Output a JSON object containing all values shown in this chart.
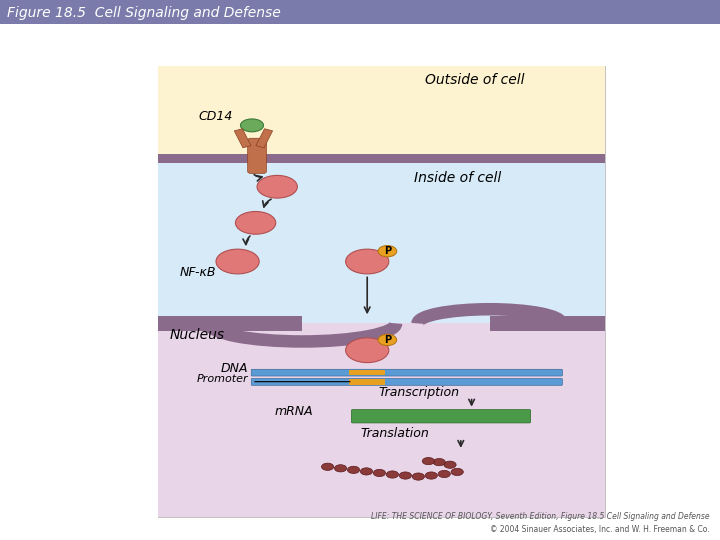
{
  "title": "Figure 18.5  Cell Signaling and Defense",
  "title_bg_color": "#7b7bab",
  "fig_bg_color": "#ffffff",
  "caption_line1": "LIFE: THE SCIENCE OF BIOLOGY, Seventh Edition, Figure 18.5 Cell Signaling and Defense",
  "caption_line2": "© 2004 Sinauer Associates, Inc. and W. H. Freeman & Co.",
  "outside_cell_color": "#fef3d0",
  "inside_cell_color": "#d6eaf8",
  "nucleus_color": "#e8d5e8",
  "membrane_color": "#8b6b8b",
  "cd14_label": "CD14",
  "outside_label": "Outside of cell",
  "inside_label": "Inside of cell",
  "nfkb_label": "NF-κB",
  "nucleus_label": "Nucleus",
  "dna_label": "DNA",
  "promoter_label": "Promoter",
  "transcription_label": "Transcription",
  "mrna_label": "mRNA",
  "translation_label": "Translation",
  "p_label": "P",
  "receptor_color": "#c0704a",
  "receptor_green_color": "#6aaa5a",
  "nfkb_color": "#e07878",
  "p_badge_color": "#e8a020",
  "dna_blue_color": "#5b9bd5",
  "dna_orange_color": "#e8a020",
  "mrna_green_color": "#4a9a4a",
  "protein_color": "#8b3a3a",
  "arrow_color": "#2a2a2a"
}
